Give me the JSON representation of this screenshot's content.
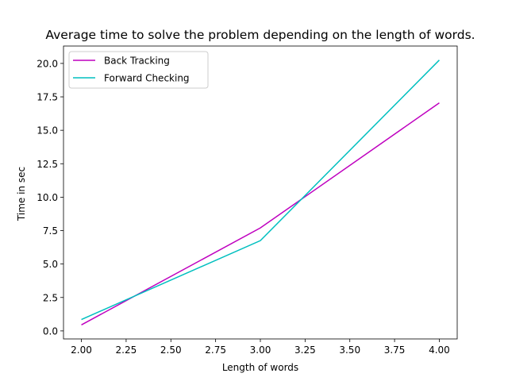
{
  "chart_data": {
    "type": "line",
    "title": "Average time to solve the problem depending on the length of words.",
    "xlabel": "Length of words",
    "ylabel": "Time in sec",
    "xlim": [
      1.9,
      4.1
    ],
    "ylim": [
      -0.6,
      21.3
    ],
    "xticks": [
      "2.00",
      "2.25",
      "2.50",
      "2.75",
      "3.00",
      "3.25",
      "3.50",
      "3.75",
      "4.00"
    ],
    "yticks": [
      "0.0",
      "2.5",
      "5.0",
      "7.5",
      "10.0",
      "12.5",
      "15.0",
      "17.5",
      "20.0"
    ],
    "grid": false,
    "legend_position": "top-left",
    "series": [
      {
        "name": "Back Tracking",
        "color": "#bf00bf",
        "x": [
          2,
          3,
          4
        ],
        "y": [
          0.45,
          7.7,
          17.05
        ]
      },
      {
        "name": "Forward Checking",
        "color": "#00bfbf",
        "x": [
          2,
          3,
          4
        ],
        "y": [
          0.85,
          6.75,
          20.25
        ]
      }
    ]
  }
}
